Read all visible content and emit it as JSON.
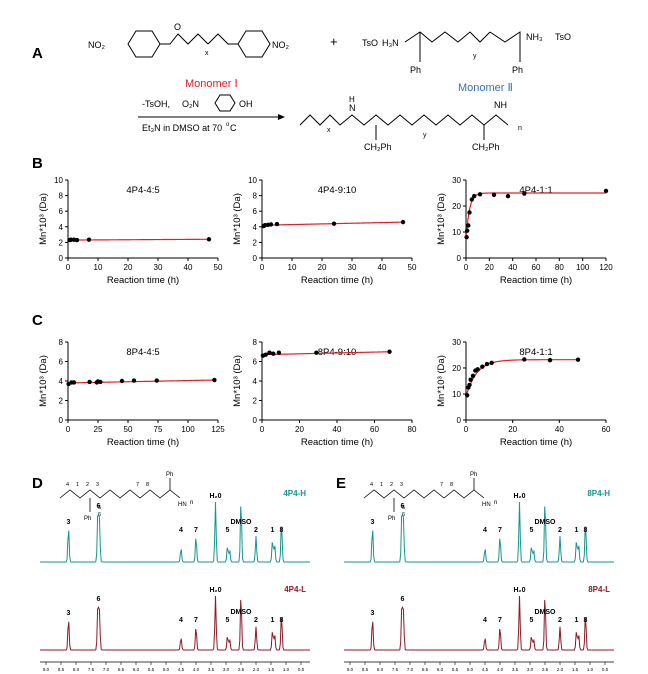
{
  "panel_labels": {
    "a": "A",
    "b": "B",
    "c": "C",
    "d": "D",
    "e": "E"
  },
  "scheme": {
    "monomer1": "Monomer Ⅰ",
    "monomer2": "Monomer Ⅱ",
    "plus": "+",
    "tso_left": "TsO",
    "tso_right": "TsO",
    "h3n": "H₃N",
    "nh3": "NH₃",
    "no2": "NO₂",
    "o2n": "O₂N",
    "ph": "Ph",
    "ch2ph": "CH₂Ph",
    "x": "x",
    "y": "y",
    "n": "n",
    "oh": "OH",
    "reagents_top": "-TsOH,",
    "reagents_bottom": "Et₃N in DMSO at 70",
    "degree": "o",
    "celsius": "C",
    "o": "O",
    "nh": "NH",
    "h": "H",
    "n_atom": "N"
  },
  "colors": {
    "fit": "#e0202a",
    "point": "#000000",
    "teal": "#16968e",
    "maroon": "#8b1a24",
    "mono1": "#e0202a",
    "mono2": "#3a6fb8"
  },
  "chart_data": [
    {
      "type": "scatter",
      "title": "4P4-4:5",
      "xlabel": "Reaction time (h)",
      "ylabel": "Mn*10³ (Da)",
      "xlim": [
        0,
        50
      ],
      "ylim": [
        0,
        10
      ],
      "xticks": [
        "0",
        "10",
        "20",
        "30",
        "40",
        "50"
      ],
      "yticks": [
        "0",
        "2",
        "4",
        "6",
        "8",
        "10"
      ],
      "x": [
        0.5,
        1,
        2,
        3,
        7,
        47
      ],
      "y": [
        2.3,
        2.35,
        2.35,
        2.3,
        2.35,
        2.4
      ],
      "fit": {
        "kind": "linear",
        "from": 0,
        "to": 47,
        "y0": 2.3,
        "y1": 2.4
      }
    },
    {
      "type": "scatter",
      "title": "4P4-9:10",
      "xlabel": "Reaction time (h)",
      "ylabel": "Mn*10³ (Da)",
      "xlim": [
        0,
        50
      ],
      "ylim": [
        0,
        10
      ],
      "xticks": [
        "0",
        "10",
        "20",
        "30",
        "40",
        "50"
      ],
      "yticks": [
        "0",
        "2",
        "4",
        "6",
        "8",
        "10"
      ],
      "x": [
        0.5,
        1,
        2,
        3,
        5,
        24,
        47
      ],
      "y": [
        4.1,
        4.2,
        4.25,
        4.3,
        4.35,
        4.4,
        4.6
      ],
      "fit": {
        "kind": "linear",
        "from": 0,
        "to": 47,
        "y0": 4.2,
        "y1": 4.6
      }
    },
    {
      "type": "scatter",
      "title": "4P4-1:1",
      "xlabel": "Reaction time (h)",
      "ylabel": "Mn*10³ (Da)",
      "xlim": [
        0,
        120
      ],
      "ylim": [
        0,
        30
      ],
      "xticks": [
        "0",
        "20",
        "40",
        "60",
        "80",
        "100",
        "120"
      ],
      "yticks": [
        "0",
        "10",
        "20",
        "30"
      ],
      "x": [
        0.5,
        1,
        2,
        3,
        5,
        7,
        12,
        24,
        36,
        50,
        120
      ],
      "y": [
        8,
        10.5,
        12.5,
        17.5,
        22.5,
        23.8,
        24.5,
        24.3,
        23.8,
        24.8,
        25.8
      ],
      "fit": {
        "kind": "saturation",
        "from": 0,
        "to": 120,
        "a": 25,
        "y0": 7,
        "k": 0.35
      }
    },
    {
      "type": "scatter",
      "title": "8P4-4:5",
      "xlabel": "Reaction time (h)",
      "ylabel": "Mn*10³ (Da)",
      "xlim": [
        0,
        125
      ],
      "ylim": [
        0,
        8
      ],
      "xticks": [
        "0",
        "25",
        "50",
        "75",
        "100",
        "125"
      ],
      "yticks": [
        "0",
        "2",
        "4",
        "6",
        "8"
      ],
      "x": [
        0.5,
        3,
        5,
        18,
        24,
        25,
        27,
        45,
        55,
        74,
        122
      ],
      "y": [
        3.7,
        3.85,
        3.85,
        3.9,
        3.85,
        3.95,
        3.9,
        4.0,
        4.05,
        4.05,
        4.1
      ],
      "fit": {
        "kind": "linear",
        "from": 0,
        "to": 122,
        "y0": 3.8,
        "y1": 4.1
      }
    },
    {
      "type": "scatter",
      "title": "8P4-9:10",
      "xlabel": "Reaction time (h)",
      "ylabel": "Mn*10³ (Da)",
      "xlim": [
        0,
        80
      ],
      "ylim": [
        0,
        8
      ],
      "xticks": [
        "0",
        "20",
        "40",
        "60",
        "80"
      ],
      "yticks": [
        "0",
        "2",
        "4",
        "6",
        "8"
      ],
      "x": [
        0.5,
        2,
        4,
        6,
        9,
        29,
        68
      ],
      "y": [
        6.6,
        6.7,
        6.9,
        6.8,
        6.9,
        6.9,
        7.0
      ],
      "fit": {
        "kind": "linear",
        "from": 0,
        "to": 68,
        "y0": 6.7,
        "y1": 7.0
      }
    },
    {
      "type": "scatter",
      "title": "8P4-1:1",
      "xlabel": "Reaction time (h)",
      "ylabel": "Mn*10³ (Da)",
      "xlim": [
        0,
        60
      ],
      "ylim": [
        0,
        30
      ],
      "xticks": [
        "0",
        "20",
        "40",
        "60"
      ],
      "yticks": [
        "0",
        "10",
        "20",
        "30"
      ],
      "x": [
        0.5,
        1,
        1.5,
        2,
        3,
        4,
        5,
        7,
        9,
        11,
        25,
        36,
        48
      ],
      "y": [
        9.5,
        12.5,
        13.5,
        15.5,
        17,
        19,
        19.5,
        20.5,
        21.5,
        22,
        23.3,
        23,
        23.2
      ],
      "fit": {
        "kind": "saturation",
        "from": 0,
        "to": 48,
        "a": 23.2,
        "y0": 9,
        "k": 0.22
      }
    }
  ],
  "nmr": {
    "xticks": [
      "9.0",
      "8.5",
      "8.0",
      "7.5",
      "7.0",
      "6.5",
      "6.0",
      "5.5",
      "5.0",
      "4.5",
      "4.0",
      "3.5",
      "3.0",
      "2.5",
      "2.0",
      "1.5",
      "1.0",
      "0.5"
    ],
    "left": {
      "top_label": "4P4-H",
      "bottom_label": "4P4-L",
      "water": "H₂0",
      "dmso": "DMSO",
      "peaks": [
        {
          "label": "3",
          "ppm": 8.25
        },
        {
          "label": "6",
          "ppm": 7.25
        },
        {
          "label": "4",
          "ppm": 4.5
        },
        {
          "label": "7",
          "ppm": 4.0
        },
        {
          "label": "5",
          "ppm": 2.95
        },
        {
          "label": "2",
          "ppm": 2.0
        },
        {
          "label": "1",
          "ppm": 1.45
        },
        {
          "label": "8",
          "ppm": 1.15
        }
      ],
      "struct_nums": [
        "4",
        "1",
        "2",
        "3",
        "7",
        "8",
        "5",
        "6"
      ],
      "struct_ph": "Ph",
      "struct_n": "n",
      "struct_hn": "HN"
    },
    "right": {
      "top_label": "8P4-H",
      "bottom_label": "8P4-L",
      "water": "H₂0",
      "dmso": "DMSO",
      "peaks": [
        {
          "label": "3",
          "ppm": 8.25
        },
        {
          "label": "6",
          "ppm": 7.25
        },
        {
          "label": "4",
          "ppm": 4.5
        },
        {
          "label": "7",
          "ppm": 4.0
        },
        {
          "label": "5",
          "ppm": 2.95
        },
        {
          "label": "2",
          "ppm": 2.0
        },
        {
          "label": "1",
          "ppm": 1.45
        },
        {
          "label": "8",
          "ppm": 1.15
        }
      ],
      "struct_nums": [
        "4",
        "1",
        "2",
        "3",
        "7",
        "8",
        "5",
        "6"
      ],
      "struct_ph": "Ph",
      "struct_n": "n",
      "struct_hn": "HN"
    }
  }
}
